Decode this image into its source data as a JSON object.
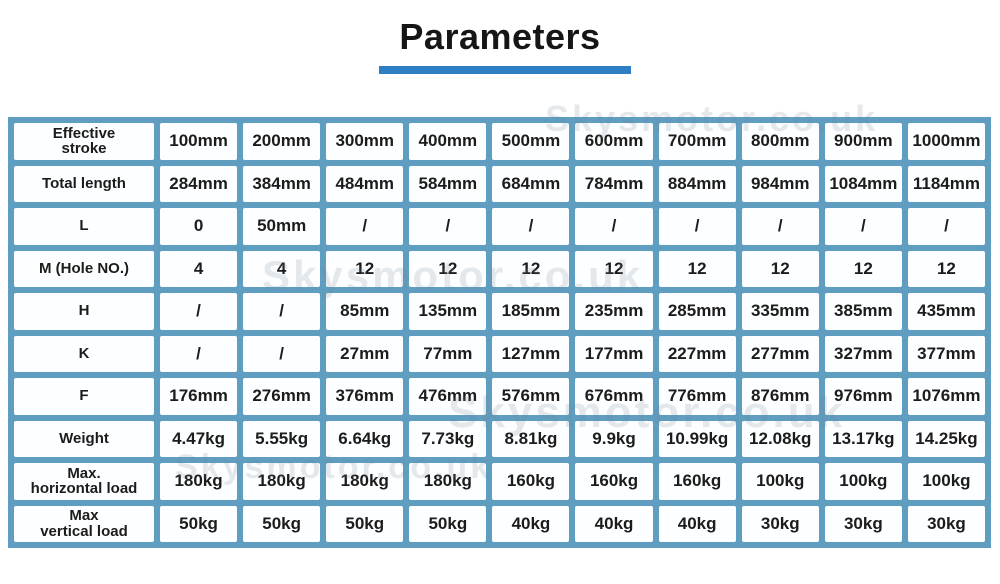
{
  "title": "Parameters",
  "watermark": "Skysmotor.co.uk",
  "colors": {
    "grid_blue": "#5f9ec0",
    "underline_blue": "#2e7ec4",
    "cell_bg": "#fcfeff",
    "text": "#1c1c1c"
  },
  "table": {
    "rows": [
      {
        "label": "Effective\nstroke",
        "values": [
          "100mm",
          "200mm",
          "300mm",
          "400mm",
          "500mm",
          "600mm",
          "700mm",
          "800mm",
          "900mm",
          "1000mm"
        ]
      },
      {
        "label": "Total length",
        "values": [
          "284mm",
          "384mm",
          "484mm",
          "584mm",
          "684mm",
          "784mm",
          "884mm",
          "984mm",
          "1084mm",
          "1184mm"
        ]
      },
      {
        "label": "L",
        "values": [
          "0",
          "50mm",
          "/",
          "/",
          "/",
          "/",
          "/",
          "/",
          "/",
          "/"
        ]
      },
      {
        "label": "M  (Hole NO.)",
        "values": [
          "4",
          "4",
          "12",
          "12",
          "12",
          "12",
          "12",
          "12",
          "12",
          "12"
        ]
      },
      {
        "label": "H",
        "values": [
          "/",
          "/",
          "85mm",
          "135mm",
          "185mm",
          "235mm",
          "285mm",
          "335mm",
          "385mm",
          "435mm"
        ]
      },
      {
        "label": "K",
        "values": [
          "/",
          "/",
          "27mm",
          "77mm",
          "127mm",
          "177mm",
          "227mm",
          "277mm",
          "327mm",
          "377mm"
        ]
      },
      {
        "label": "F",
        "values": [
          "176mm",
          "276mm",
          "376mm",
          "476mm",
          "576mm",
          "676mm",
          "776mm",
          "876mm",
          "976mm",
          "1076mm"
        ]
      },
      {
        "label": "Weight",
        "values": [
          "4.47kg",
          "5.55kg",
          "6.64kg",
          "7.73kg",
          "8.81kg",
          "9.9kg",
          "10.99kg",
          "12.08kg",
          "13.17kg",
          "14.25kg"
        ]
      },
      {
        "label": "Max.\nhorizontal load",
        "values": [
          "180kg",
          "180kg",
          "180kg",
          "180kg",
          "160kg",
          "160kg",
          "160kg",
          "100kg",
          "100kg",
          "100kg"
        ]
      },
      {
        "label": "Max\nvertical load",
        "values": [
          "50kg",
          "50kg",
          "50kg",
          "50kg",
          "40kg",
          "40kg",
          "40kg",
          "30kg",
          "30kg",
          "30kg"
        ]
      }
    ]
  }
}
